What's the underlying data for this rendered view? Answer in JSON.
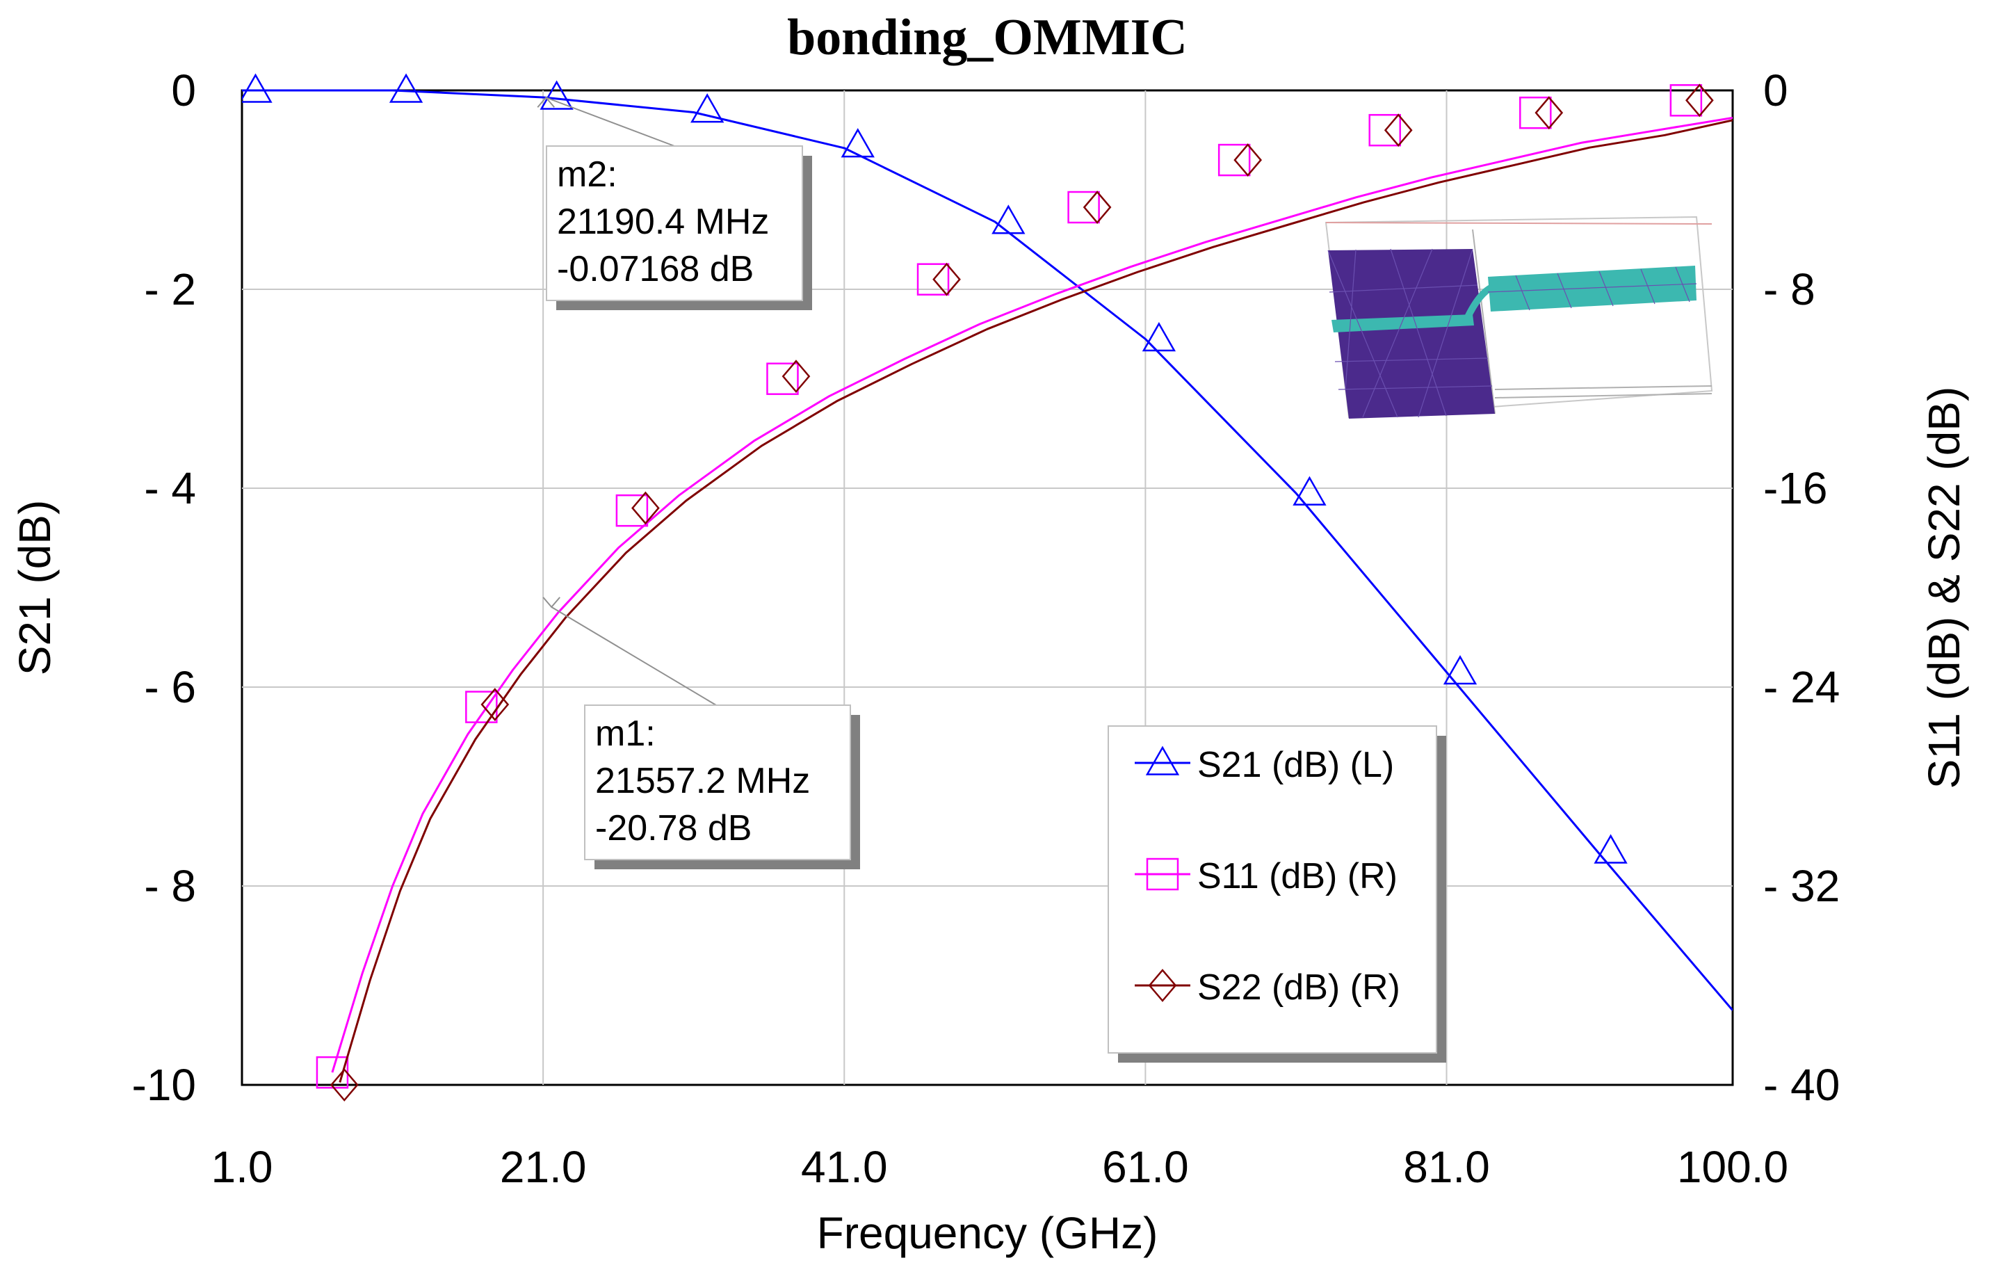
{
  "chart_data": {
    "type": "line",
    "title": "bonding_OMMIC",
    "xlabel": "Frequency (GHz)",
    "ylabel_left": "S21 (dB)",
    "ylabel_right": "S11 (dB) & S22 (dB)",
    "xlim": [
      1.0,
      100.0
    ],
    "ylim_left": [
      -10,
      0
    ],
    "ylim_right": [
      -40,
      0
    ],
    "grid": true,
    "x_ticks": [
      1.0,
      21.0,
      41.0,
      61.0,
      81.0,
      100.0
    ],
    "x_tick_labels": [
      "1.0",
      "21.0",
      "41.0",
      "61.0",
      "81.0",
      "100.0"
    ],
    "y_left_ticks": [
      0,
      -2,
      -4,
      -6,
      -8,
      -10
    ],
    "y_left_tick_labels": [
      "0",
      "- 2",
      "- 4",
      "- 6",
      "- 8",
      "-10"
    ],
    "y_right_ticks": [
      0,
      -8,
      -16,
      -24,
      -32,
      -40
    ],
    "y_right_tick_labels": [
      "0",
      "- 8",
      "-16",
      "- 24",
      "- 32",
      "- 40"
    ],
    "series": [
      {
        "name": "S21 (dB) (L)",
        "axis": "left",
        "color": "#0000ff",
        "marker": "triangle",
        "x": [
          1,
          11,
          21,
          31,
          41,
          51,
          61,
          71,
          81,
          91,
          100
        ],
        "y": [
          0.0,
          0.0,
          -0.07,
          -0.22,
          -0.58,
          -1.32,
          -2.5,
          -4.05,
          -5.85,
          -7.65,
          -9.25
        ],
        "markers": [
          {
            "x": 1.9,
            "y": 0.0
          },
          {
            "x": 11.9,
            "y": 0.0
          },
          {
            "x": 21.9,
            "y": -0.07
          },
          {
            "x": 31.9,
            "y": -0.2
          },
          {
            "x": 41.9,
            "y": -0.55
          },
          {
            "x": 51.9,
            "y": -1.32
          },
          {
            "x": 61.9,
            "y": -2.5
          },
          {
            "x": 71.9,
            "y": -4.05
          },
          {
            "x": 81.9,
            "y": -5.85
          },
          {
            "x": 91.9,
            "y": -7.65
          }
        ]
      },
      {
        "name": "S11 (dB) (R)",
        "axis": "right",
        "color": "#ff00ff",
        "marker": "square",
        "x": [
          7,
          9,
          11,
          13,
          16,
          19,
          22,
          26,
          30,
          35,
          40,
          45,
          50,
          55,
          60,
          65,
          70,
          75,
          80,
          85,
          90,
          95,
          100
        ],
        "y": [
          -39.5,
          -35.5,
          -32,
          -29.1,
          -25.9,
          -23.3,
          -21.0,
          -18.4,
          -16.3,
          -14.1,
          -12.3,
          -10.8,
          -9.4,
          -8.2,
          -7.1,
          -6.1,
          -5.2,
          -4.3,
          -3.5,
          -2.8,
          -2.1,
          -1.6,
          -1.1
        ],
        "markers": [
          {
            "x": 7.0,
            "y": -39.5
          },
          {
            "x": 16.9,
            "y": -24.8
          },
          {
            "x": 26.9,
            "y": -16.9
          },
          {
            "x": 36.9,
            "y": -11.6
          },
          {
            "x": 46.9,
            "y": -7.6
          },
          {
            "x": 56.9,
            "y": -4.7
          },
          {
            "x": 66.9,
            "y": -2.8
          },
          {
            "x": 76.9,
            "y": -1.6
          },
          {
            "x": 86.9,
            "y": -0.9
          },
          {
            "x": 96.9,
            "y": -0.4
          }
        ]
      },
      {
        "name": "S22 (dB) (R)",
        "axis": "right",
        "color": "#800000",
        "marker": "diamond",
        "x": [
          7.5,
          9.5,
          11.5,
          13.5,
          16.5,
          19.5,
          22.5,
          26.5,
          30.5,
          35.5,
          40.5,
          45.5,
          50.5,
          55.5,
          60.5,
          65.5,
          70.5,
          75.5,
          80.5,
          85.5,
          90.5,
          95.5,
          100
        ],
        "y": [
          -39.9,
          -35.8,
          -32.2,
          -29.3,
          -26.1,
          -23.5,
          -21.2,
          -18.6,
          -16.5,
          -14.3,
          -12.5,
          -11.0,
          -9.6,
          -8.4,
          -7.3,
          -6.3,
          -5.4,
          -4.5,
          -3.7,
          -3.0,
          -2.3,
          -1.8,
          -1.2
        ],
        "markers": [
          {
            "x": 7.8,
            "y": -40.0
          },
          {
            "x": 17.8,
            "y": -24.7
          },
          {
            "x": 27.8,
            "y": -16.8
          },
          {
            "x": 37.8,
            "y": -11.5
          },
          {
            "x": 47.8,
            "y": -7.6
          },
          {
            "x": 57.8,
            "y": -4.7
          },
          {
            "x": 67.8,
            "y": -2.8
          },
          {
            "x": 77.8,
            "y": -1.6
          },
          {
            "x": 87.8,
            "y": -0.9
          },
          {
            "x": 97.8,
            "y": -0.4
          }
        ]
      }
    ],
    "markers": [
      {
        "id": "m2",
        "label": "m2:",
        "freq_text": "21190.4 MHz",
        "value_text": "-0.07168 dB",
        "x": 21.19,
        "axis": "left",
        "y": -0.07168
      },
      {
        "id": "m1",
        "label": "m1:",
        "freq_text": "21557.2 MHz",
        "value_text": "-20.78 dB",
        "x": 21.557,
        "axis": "right",
        "y": -20.78
      }
    ],
    "legend": {
      "placement": "lower-right",
      "entries": [
        "S21 (dB) (L)",
        "S11 (dB) (R)",
        "S22 (dB) (R)"
      ]
    },
    "inset": {
      "description_name": "em-structure-3d-view",
      "colors": {
        "substrate": "#4b2a8c",
        "trace": "#3cb8b0",
        "outline": "#b0b0b0"
      }
    }
  }
}
